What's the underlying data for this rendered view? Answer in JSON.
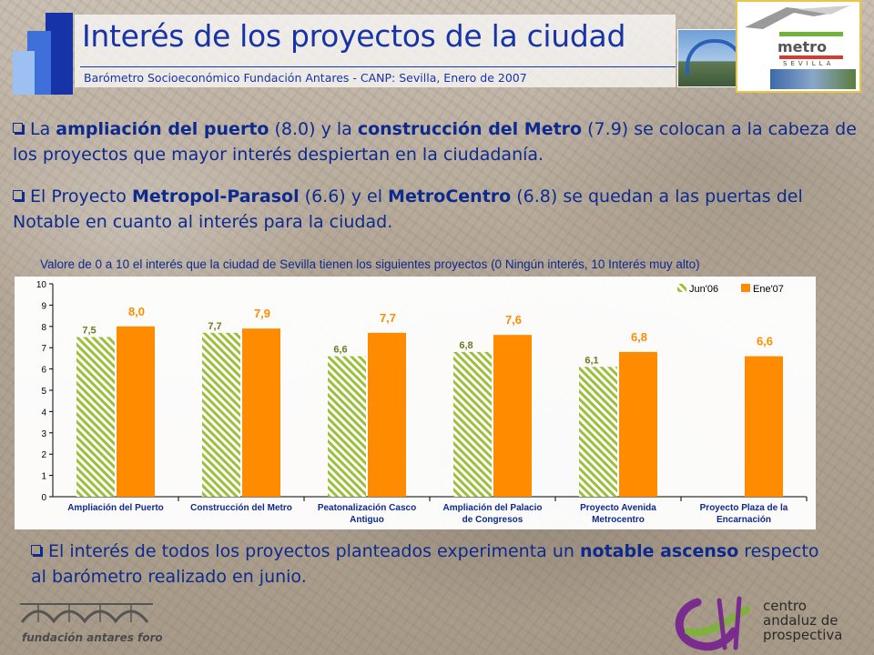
{
  "header": {
    "title": "Interés de los proyectos de la ciudad",
    "subtitle": "Barómetro Socioeconómico Fundación Antares - CANP: Sevilla, Enero de 2007"
  },
  "bullets": [
    {
      "parts": [
        {
          "text": "La ",
          "bold": false
        },
        {
          "text": "ampliación del puerto",
          "bold": true
        },
        {
          "text": " (8.0) y la ",
          "bold": false
        },
        {
          "text": "construcción del Metro",
          "bold": true
        },
        {
          "text": " (7.9) se colocan a la cabeza de los proyectos que mayor interés despiertan en la ciudadanía.",
          "bold": false
        }
      ]
    },
    {
      "parts": [
        {
          "text": "El Proyecto ",
          "bold": false
        },
        {
          "text": "Metropol-Parasol",
          "bold": true
        },
        {
          "text": " (6.6) y el ",
          "bold": false
        },
        {
          "text": "MetroCentro",
          "bold": true
        },
        {
          "text": " (6.8) se quedan a las puertas del Notable en cuanto al interés para la ciudad.",
          "bold": false
        }
      ]
    },
    {
      "parts": [
        {
          "text": "El interés de todos los proyectos planteados experimenta un ",
          "bold": false
        },
        {
          "text": "notable ascenso",
          "bold": true
        },
        {
          "text": " respecto al barómetro realizado en junio.",
          "bold": false
        }
      ]
    }
  ],
  "logos": {
    "metro_word": "metro",
    "metro_city": "SEVILLA",
    "fundacion": "fundación antares foro",
    "centro_lines": [
      "centro",
      "andaluz de",
      "prospectiva"
    ]
  },
  "colors": {
    "title_blue": "#1733a8",
    "series_jun06": "#9cbf3a",
    "series_ene07": "#ff8c00",
    "label_jun06": "#6b7d1a",
    "label_ene07": "#ff8c00"
  },
  "chart_data": {
    "type": "bar",
    "title": "Valore de 0 a 10 el interés que la ciudad de Sevilla tienen los siguientes proyectos (0 Ningún interés, 10 Interés muy alto)",
    "categories": [
      [
        "Ampliación del Puerto"
      ],
      [
        "Construcción del Metro"
      ],
      [
        "Peatonalización Casco",
        "Antiguo"
      ],
      [
        "Ampliación del Palacio",
        "de Congresos"
      ],
      [
        "Proyecto Avenida",
        "Metrocentro"
      ],
      [
        "Proyecto Plaza de la",
        "Encarnación"
      ]
    ],
    "series": [
      {
        "name": "Jun'06",
        "values": [
          7.5,
          7.7,
          6.6,
          6.8,
          6.1,
          null
        ],
        "labels": [
          "7,5",
          "7,7",
          "6,6",
          "6,8",
          "6,1",
          null
        ]
      },
      {
        "name": "Ene'07",
        "values": [
          8.0,
          7.9,
          7.7,
          7.6,
          6.8,
          6.6
        ],
        "labels": [
          "8,0",
          "7,9",
          "7,7",
          "7,6",
          "6,8",
          "6,6"
        ]
      }
    ],
    "yticks": [
      "0",
      "1",
      "2",
      "3",
      "4",
      "5",
      "6",
      "7",
      "8",
      "9",
      "10"
    ],
    "ylim": [
      0,
      10
    ],
    "grid": false,
    "legend": "top-right"
  }
}
